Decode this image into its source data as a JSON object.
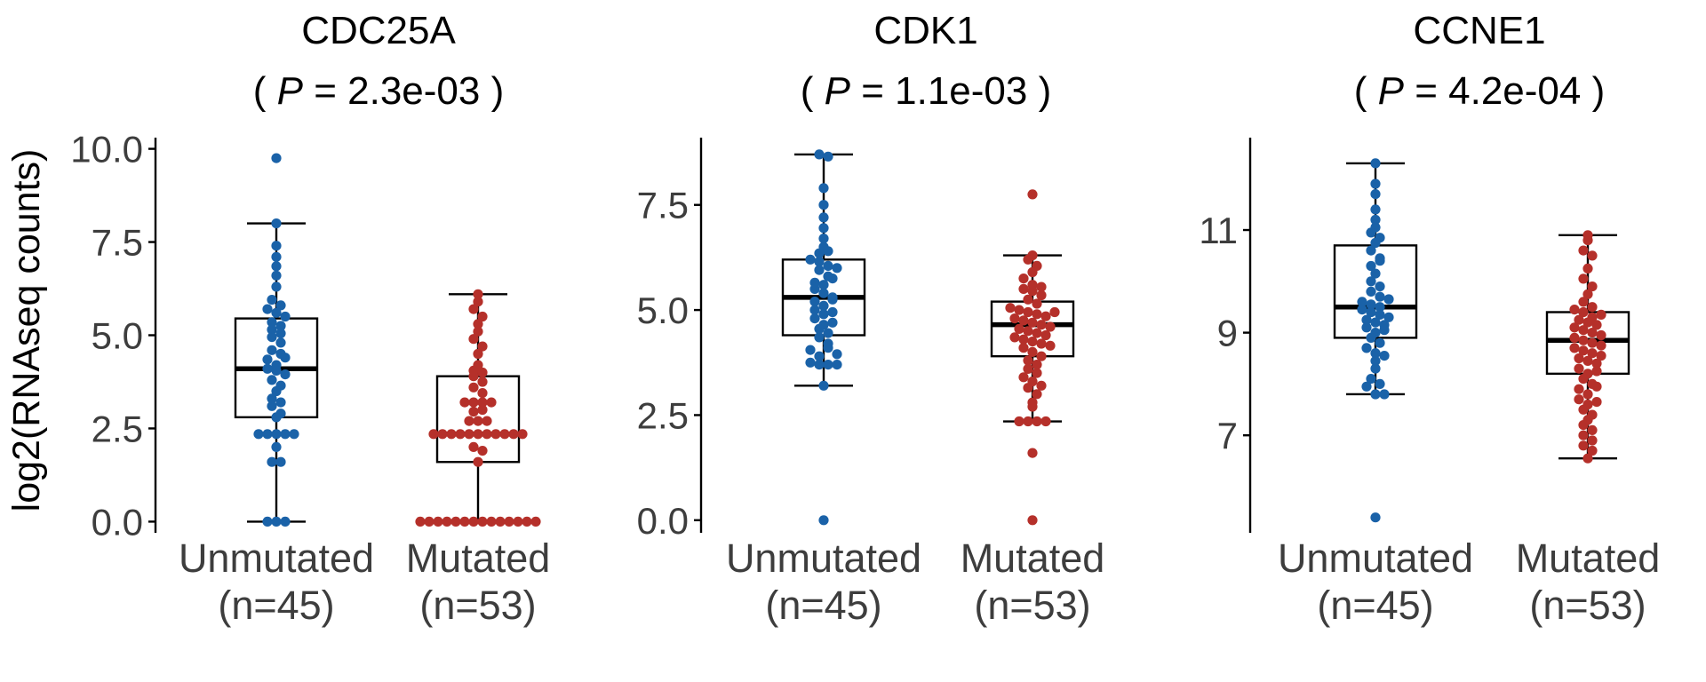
{
  "chart_data": {
    "type": "box",
    "ylabel": "log2(RNAseq counts)",
    "categories": [
      {
        "name": "Unmutated",
        "n": "(n=45)"
      },
      {
        "name": "Mutated",
        "n": "(n=53)"
      }
    ],
    "group_colors": [
      "#1a62a8",
      "#b5302a"
    ],
    "panels": [
      {
        "gene": "CDC25A",
        "p_prefix": "(",
        "p_label": "P",
        "p_value": "= 2.3e-03 )",
        "ylim": [
          -0.3,
          10.3
        ],
        "yticks": [
          0,
          2.5,
          5,
          7.5,
          10
        ],
        "ytick_labels": [
          "0.0",
          "2.5",
          "5.0",
          "7.5",
          "10.0"
        ],
        "boxes": [
          {
            "group": "Unmutated",
            "min": 0,
            "q1": 2.8,
            "median": 4.1,
            "q3": 5.45,
            "max": 8.0
          },
          {
            "group": "Mutated",
            "min": 0,
            "q1": 1.6,
            "median": 2.35,
            "q3": 3.9,
            "max": 6.1
          }
        ],
        "points": [
          [
            9.75,
            8.0,
            7.4,
            7.1,
            6.85,
            6.6,
            6.3,
            5.95,
            5.8,
            5.7,
            5.6,
            5.5,
            5.35,
            5.25,
            5.15,
            4.95,
            4.8,
            4.6,
            4.5,
            4.35,
            4.2,
            4.1,
            4.05,
            3.95,
            3.8,
            3.65,
            3.5,
            3.3,
            3.1,
            2.9,
            2.8,
            2.35,
            2.35,
            2.35,
            2.35,
            2.35,
            1.6,
            1.6,
            0,
            0,
            0,
            2.0,
            3.2,
            4.4,
            5.05
          ],
          [
            6.1,
            5.9,
            5.7,
            5.5,
            5.3,
            5.1,
            4.9,
            4.7,
            4.5,
            4.2,
            4.05,
            4.0,
            3.9,
            3.75,
            3.6,
            3.45,
            3.2,
            3.2,
            3.2,
            3.2,
            2.95,
            2.7,
            2.7,
            2.7,
            2.35,
            2.35,
            2.35,
            2.35,
            2.35,
            2.35,
            2.35,
            2.35,
            2.35,
            2.35,
            2.35,
            1.6,
            0,
            0,
            0,
            0,
            0,
            0,
            0,
            0,
            0,
            0,
            0,
            0,
            0,
            0,
            2.0,
            1.9,
            3.0
          ]
        ]
      },
      {
        "gene": "CDK1",
        "p_prefix": "(",
        "p_label": "P",
        "p_value": "= 1.1e-03 )",
        "ylim": [
          -0.3,
          9.1
        ],
        "yticks": [
          0,
          2.5,
          5,
          7.5
        ],
        "ytick_labels": [
          "0.0",
          "2.5",
          "5.0",
          "7.5"
        ],
        "boxes": [
          {
            "group": "Unmutated",
            "min": 3.2,
            "q1": 4.4,
            "median": 5.3,
            "q3": 6.2,
            "max": 8.7
          },
          {
            "group": "Mutated",
            "min": 2.35,
            "q1": 3.9,
            "median": 4.65,
            "q3": 5.2,
            "max": 6.3
          }
        ],
        "points": [
          [
            8.7,
            8.65,
            7.9,
            7.5,
            7.2,
            6.95,
            6.7,
            6.5,
            6.35,
            6.2,
            6.15,
            6.05,
            5.95,
            5.8,
            5.65,
            5.5,
            5.4,
            5.3,
            5.2,
            5.1,
            5.0,
            4.9,
            4.8,
            4.65,
            4.55,
            4.45,
            4.35,
            4.2,
            4.05,
            3.9,
            3.75,
            3.7,
            3.7,
            3.7,
            3.2,
            0,
            5.25,
            4.95,
            4.7,
            5.6,
            6.0,
            6.4,
            4.1,
            3.95,
            5.75
          ],
          [
            7.75,
            6.3,
            6.2,
            6.05,
            5.9,
            5.75,
            5.6,
            5.5,
            5.45,
            5.35,
            5.25,
            5.15,
            5.05,
            5.0,
            4.95,
            4.9,
            4.85,
            4.8,
            4.75,
            4.7,
            4.65,
            4.6,
            4.55,
            4.5,
            4.45,
            4.4,
            4.35,
            4.3,
            4.25,
            4.2,
            4.1,
            4.0,
            3.9,
            3.8,
            3.7,
            3.6,
            3.5,
            3.4,
            3.3,
            3.2,
            3.15,
            3.0,
            2.8,
            2.7,
            2.35,
            2.35,
            2.35,
            2.35,
            1.6,
            0,
            5.55,
            4.95,
            4.15
          ]
        ]
      },
      {
        "gene": "CCNE1",
        "p_prefix": "(",
        "p_label": "P",
        "p_value": "= 4.2e-04 )",
        "ylim": [
          5.1,
          12.8
        ],
        "yticks": [
          7,
          9,
          11
        ],
        "ytick_labels": [
          "7",
          "9",
          "11"
        ],
        "boxes": [
          {
            "group": "Unmutated",
            "min": 7.8,
            "q1": 8.9,
            "median": 9.5,
            "q3": 10.7,
            "max": 12.3
          },
          {
            "group": "Mutated",
            "min": 6.55,
            "q1": 8.2,
            "median": 8.85,
            "q3": 9.4,
            "max": 10.9
          }
        ],
        "points": [
          [
            12.3,
            11.9,
            11.7,
            11.4,
            11.2,
            11.05,
            10.95,
            10.85,
            10.75,
            10.6,
            10.45,
            10.3,
            10.15,
            10.0,
            9.9,
            9.8,
            9.7,
            9.6,
            9.55,
            9.5,
            9.45,
            9.4,
            9.35,
            9.3,
            9.25,
            9.2,
            9.15,
            9.1,
            9.0,
            8.9,
            8.8,
            8.7,
            8.6,
            8.45,
            8.3,
            8.1,
            7.95,
            7.8,
            7.8,
            5.4,
            10.4,
            9.65,
            9.05,
            8.55,
            8.0
          ],
          [
            10.9,
            10.8,
            10.6,
            10.5,
            10.25,
            10.05,
            9.9,
            9.75,
            9.6,
            9.5,
            9.45,
            9.4,
            9.3,
            9.25,
            9.2,
            9.15,
            9.1,
            9.05,
            9.0,
            8.95,
            8.9,
            8.85,
            8.8,
            8.75,
            8.7,
            8.65,
            8.6,
            8.5,
            8.45,
            8.4,
            8.3,
            8.2,
            8.1,
            8.0,
            7.9,
            7.8,
            7.7,
            7.6,
            7.5,
            7.4,
            7.3,
            7.2,
            7.1,
            7.0,
            6.9,
            6.8,
            6.7,
            6.55,
            9.35,
            8.55,
            8.25,
            7.95,
            7.65
          ]
        ]
      }
    ]
  }
}
